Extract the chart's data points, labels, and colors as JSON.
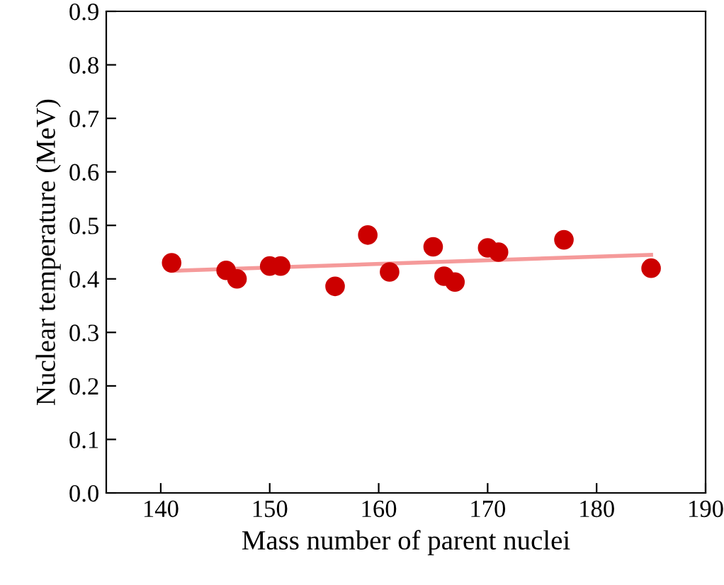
{
  "chart_data": {
    "type": "scatter",
    "xlabel": "Mass number of parent nuclei",
    "ylabel": "Nuclear temperature (MeV)",
    "xlim": [
      135,
      190
    ],
    "xticks": [
      140,
      150,
      160,
      170,
      180,
      190
    ],
    "ylim": [
      0,
      0.9
    ],
    "yticks": [
      {
        "value": 0,
        "label": "0.0"
      },
      0.1,
      0.2,
      0.3,
      0.4,
      0.5,
      0.6,
      0.7,
      0.8,
      0.9
    ],
    "grid": false,
    "series": [
      {
        "color": "#cc0000",
        "marker": "circle",
        "x": [
          141,
          146,
          147,
          150,
          151,
          156,
          159,
          161,
          165,
          166,
          167,
          170,
          171,
          177,
          185
        ],
        "values": [
          0.43,
          0.416,
          0.4,
          0.424,
          0.424,
          0.386,
          0.482,
          0.413,
          0.46,
          0.405,
          0.394,
          0.458,
          0.45,
          0.473,
          0.42
        ]
      },
      {
        "type": "line",
        "color": "#f59a9a",
        "line_style": "solid",
        "x": [
          141,
          185
        ],
        "values": [
          0.415,
          0.445
        ]
      }
    ]
  }
}
